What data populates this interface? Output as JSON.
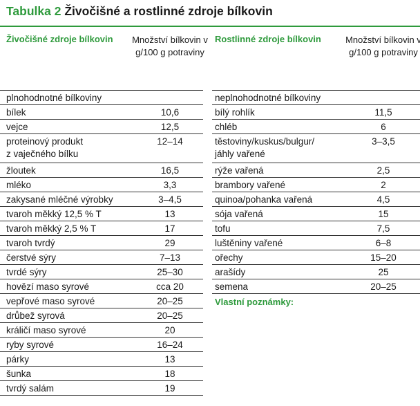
{
  "title": {
    "label": "Tabulka 2",
    "text": "Živočišné a rostlinné zdroje bílkovin"
  },
  "left": {
    "header_name": "Živočišné zdroje bílkovin",
    "header_value": "Množství bílkovin v g/100 g potraviny",
    "rows": [
      {
        "name": "plnohodnotné bílkoviny",
        "value": ""
      },
      {
        "name": "bílek",
        "value": "10,6"
      },
      {
        "name": "vejce",
        "value": "12,5"
      },
      {
        "name": "proteinový produkt\nz vaječného bílku",
        "value": "12–14"
      },
      {
        "name": "žloutek",
        "value": "16,5"
      },
      {
        "name": "mléko",
        "value": "3,3"
      },
      {
        "name": "zakysané mléčné výrobky",
        "value": "3–4,5"
      },
      {
        "name": "tvaroh měkký 12,5 % T",
        "value": "13"
      },
      {
        "name": "tvaroh měkký 2,5 % T",
        "value": "17"
      },
      {
        "name": "tvaroh tvrdý",
        "value": "29"
      },
      {
        "name": "čerstvé sýry",
        "value": "7–13"
      },
      {
        "name": "tvrdé sýry",
        "value": "25–30"
      },
      {
        "name": "hovězí maso syrové",
        "value": "cca 20"
      },
      {
        "name": "vepřové maso syrové",
        "value": "20–25"
      },
      {
        "name": "drůbež syrová",
        "value": "20–25"
      },
      {
        "name": "králičí maso syrové",
        "value": "20"
      },
      {
        "name": "ryby syrové",
        "value": "16–24"
      },
      {
        "name": "párky",
        "value": "13"
      },
      {
        "name": "šunka",
        "value": "18"
      },
      {
        "name": "tvrdý salám",
        "value": "19"
      }
    ]
  },
  "right": {
    "header_name": "Rostlinné zdroje bílkovin",
    "header_value": "Množství bílkovin v g/100 g potraviny",
    "rows": [
      {
        "name": "neplnohodnotné bílkoviny",
        "value": ""
      },
      {
        "name": "bílý rohlík",
        "value": "11,5"
      },
      {
        "name": "chléb",
        "value": "6"
      },
      {
        "name": "těstoviny/kuskus/bulgur/\njáhly vařené",
        "value": "3–3,5"
      },
      {
        "name": "rýže vařená",
        "value": "2,5"
      },
      {
        "name": "brambory vařené",
        "value": "2"
      },
      {
        "name": "quinoa/pohanka vařená",
        "value": "4,5"
      },
      {
        "name": "sója vařená",
        "value": "15"
      },
      {
        "name": "tofu",
        "value": "7,5"
      },
      {
        "name": "luštěniny vařené",
        "value": "6–8"
      },
      {
        "name": "ořechy",
        "value": "15–20"
      },
      {
        "name": "arašídy",
        "value": "25"
      },
      {
        "name": "semena",
        "value": "20–25"
      }
    ],
    "notes_label": "Vlastní poznámky:"
  }
}
